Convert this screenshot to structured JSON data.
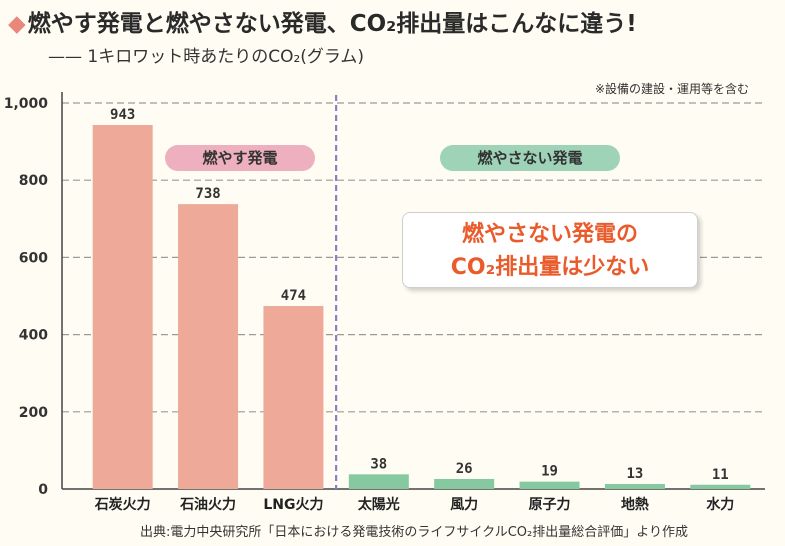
{
  "header": {
    "title": "燃やす発電と燃やさない発電、CO₂排出量はこんなに違う!",
    "subtitle": "—— 1キロワット時あたりのCO₂(グラム)",
    "note": "※設備の建設・運用等を含む",
    "source": "出典:電力中央研究所「日本における発電技術のライフサイクルCO₂排出量総合評価」より作成"
  },
  "labels": {
    "burn": "燃やす発電",
    "noburn": "燃やさない発電",
    "callout_line1": "燃やさない発電の",
    "callout_line2": "CO₂排出量は少ない"
  },
  "chart_data": {
    "type": "bar",
    "categories": [
      "石炭火力",
      "石油火力",
      "LNG火力",
      "太陽光",
      "風力",
      "原子力",
      "地熱",
      "水力"
    ],
    "values": [
      943,
      738,
      474,
      38,
      26,
      19,
      13,
      11
    ],
    "groups": [
      "burn",
      "burn",
      "burn",
      "noburn",
      "noburn",
      "noburn",
      "noburn",
      "noburn"
    ],
    "ylim": [
      0,
      1000
    ],
    "yticks": [
      0,
      200,
      400,
      600,
      800,
      1000
    ],
    "ytick_labels": [
      "0",
      "200",
      "400",
      "600",
      "800",
      "1,000"
    ],
    "grid": true,
    "colors": {
      "burn": "#eea999",
      "noburn": "#86c9a0",
      "grid": "#9a9a9a",
      "divider": "#8a7fc6"
    }
  }
}
